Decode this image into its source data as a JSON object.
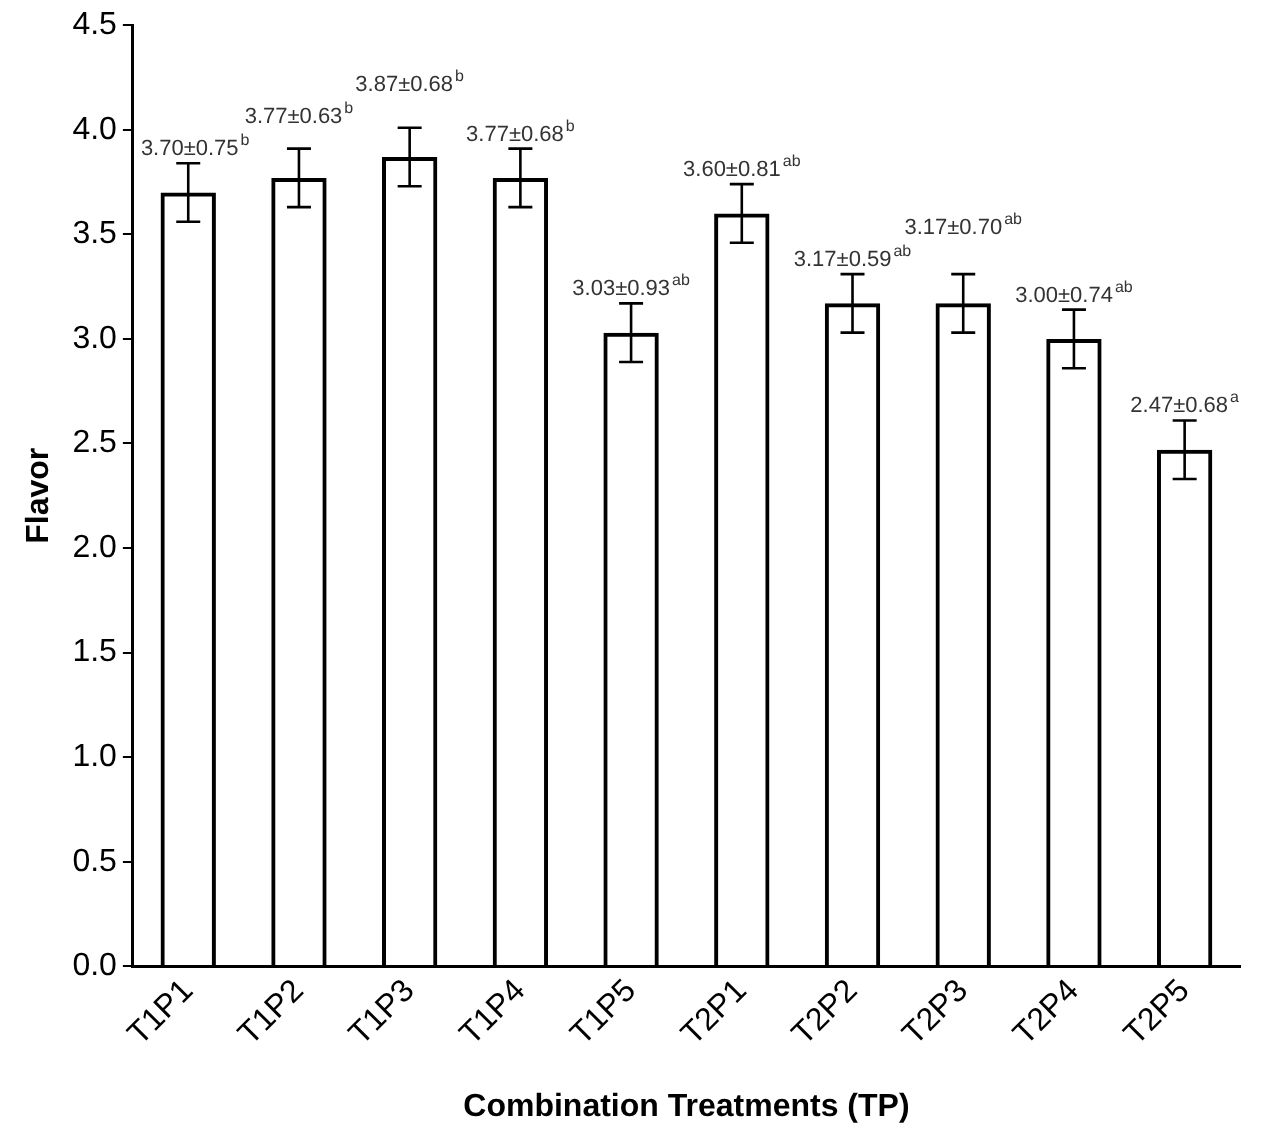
{
  "chart_data": {
    "type": "bar",
    "xlabel": "Combination Treatments (TP)",
    "ylabel": "Flavor",
    "categories": [
      "T1P1",
      "T1P2",
      "T1P3",
      "T1P4",
      "T1P5",
      "T2P1",
      "T2P2",
      "T2P3",
      "T2P4",
      "T2P5"
    ],
    "values": [
      3.7,
      3.77,
      3.87,
      3.77,
      3.03,
      3.6,
      3.17,
      3.17,
      3.0,
      2.47
    ],
    "errors": [
      0.14,
      0.14,
      0.14,
      0.14,
      0.14,
      0.14,
      0.14,
      0.14,
      0.14,
      0.14
    ],
    "value_labels": [
      "3.70±0.75$^{b}$",
      "3.77±0.63$^{b}$",
      "3.87±0.68$^{b}$",
      "3.77±0.68$^{b}$",
      "3.03±0.93$^{ab}$",
      "3.60±0.81$^{ab}$",
      "3.17±0.59$^{ab}$",
      "3.17±0.70$^{ab}$",
      "3.00±0.74$^{ab}$",
      "2.47±0.68$^{a}$"
    ],
    "color": "#000000",
    "ylim": [
      0,
      4.5
    ],
    "yticks": [
      {
        "value": 0,
        "label": "0.0"
      },
      {
        "value": 0.5,
        "label": "0.5"
      },
      {
        "value": 1,
        "label": "1.0"
      },
      {
        "value": 1.5,
        "label": "1.5"
      },
      {
        "value": 2,
        "label": "2.0"
      },
      {
        "value": 2.5,
        "label": "2.5"
      },
      {
        "value": 3,
        "label": "3.0"
      },
      {
        "value": 3.5,
        "label": "3.5"
      },
      {
        "value": 4,
        "label": "4.0"
      },
      {
        "value": 4.5,
        "label": "4.5"
      }
    ],
    "grid": false,
    "legend": false
  }
}
